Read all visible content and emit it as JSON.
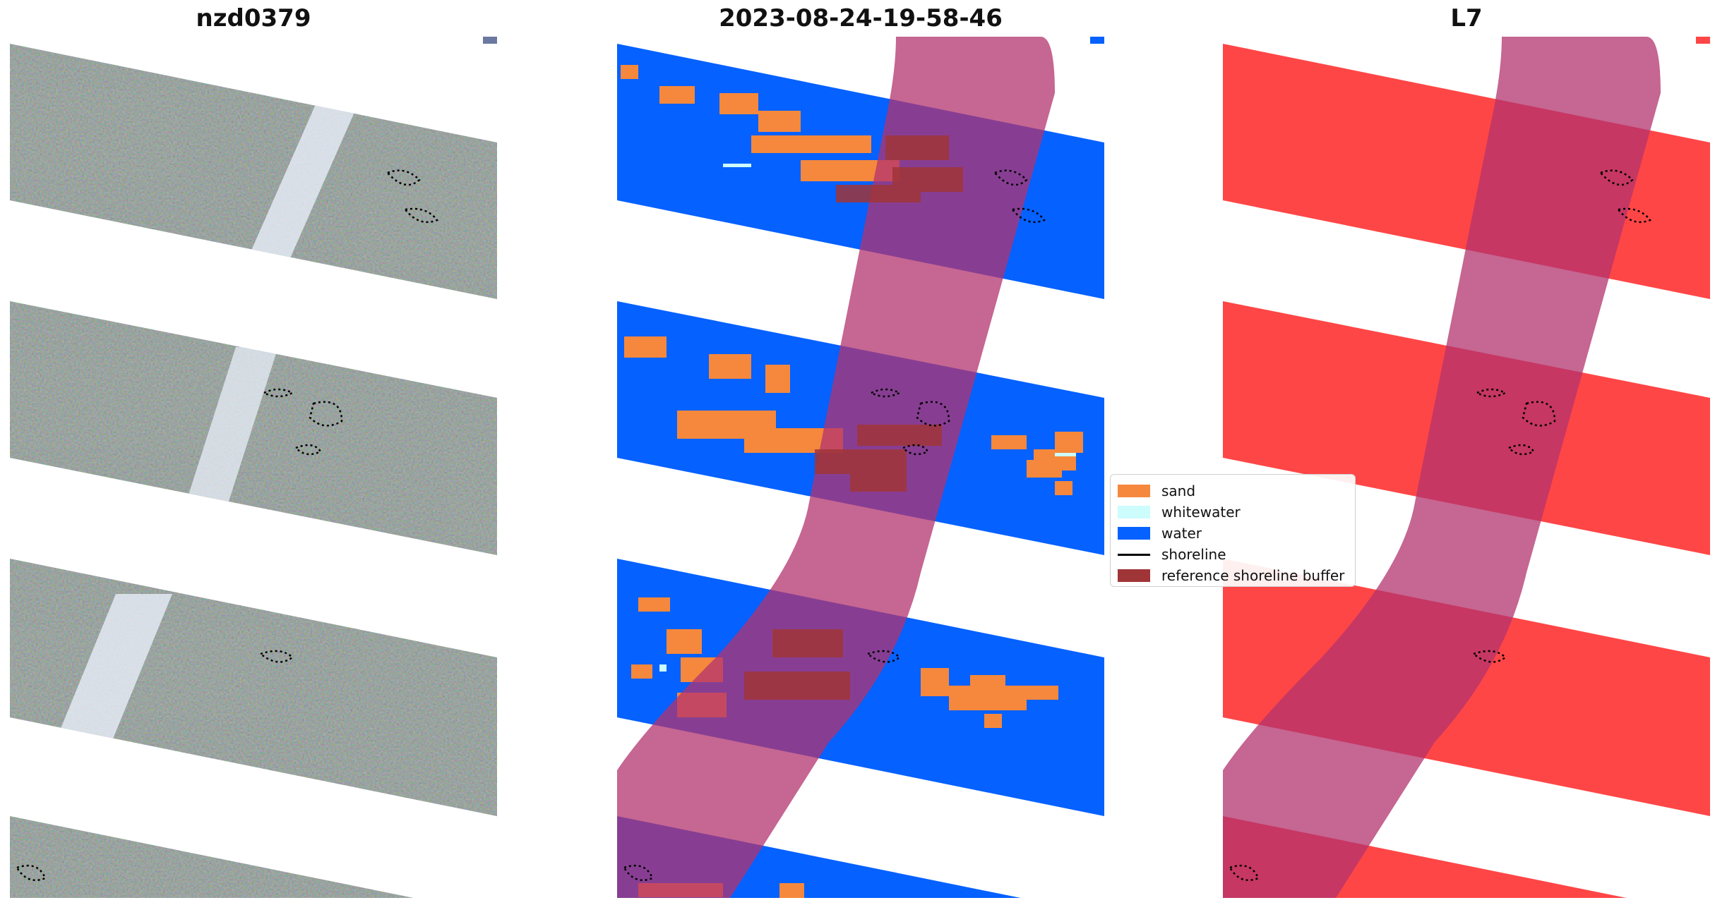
{
  "panels": [
    {
      "title": "nzd0379",
      "style": "rgb"
    },
    {
      "title": "2023-08-24-19-58-46",
      "style": "classified"
    },
    {
      "title": "L7",
      "style": "mask"
    }
  ],
  "legend": {
    "placement": "center-left of third panel",
    "entries": [
      {
        "label": "sand",
        "kind": "patch",
        "color": "#f5883c"
      },
      {
        "label": "whitewater",
        "kind": "patch",
        "color": "#ccfcfc"
      },
      {
        "label": "water",
        "kind": "patch",
        "color": "#0561ff"
      },
      {
        "label": "shoreline",
        "kind": "line",
        "color": "#000000"
      },
      {
        "label": "reference shoreline buffer",
        "kind": "patch",
        "color": "#a03538"
      }
    ]
  },
  "colors": {
    "imagery_gray": "#8d9a95",
    "water": "#0561ff",
    "sand": "#f5883c",
    "whitewater": "#ccfcfc",
    "buffer": "#a03538",
    "buffer_overlay": "#b3336e",
    "mask_red": "#ff4646",
    "contour": "#000000"
  }
}
